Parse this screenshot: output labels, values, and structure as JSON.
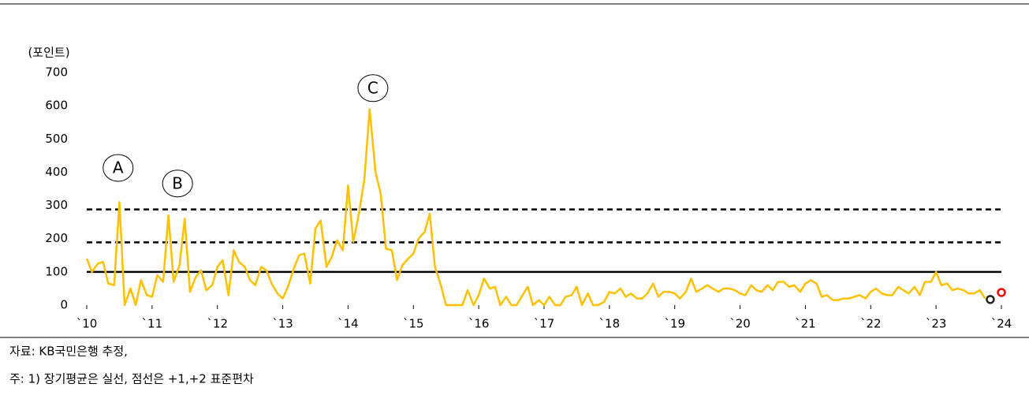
{
  "chart_data": {
    "type": "line",
    "unit_label": "(포인트)",
    "color": "#ffc000",
    "xlim": [
      2010,
      2024
    ],
    "xticks": [
      {
        "value": 2010,
        "label": "`10"
      },
      {
        "value": 2011,
        "label": "`11"
      },
      {
        "value": 2012,
        "label": "`12"
      },
      {
        "value": 2013,
        "label": "`13"
      },
      {
        "value": 2014,
        "label": "`14"
      },
      {
        "value": 2015,
        "label": "`15"
      },
      {
        "value": 2016,
        "label": "`16"
      },
      {
        "value": 2017,
        "label": "`17"
      },
      {
        "value": 2018,
        "label": "`18"
      },
      {
        "value": 2019,
        "label": "`19"
      },
      {
        "value": 2020,
        "label": "`20"
      },
      {
        "value": 2021,
        "label": "`21"
      },
      {
        "value": 2022,
        "label": "`22"
      },
      {
        "value": 2023,
        "label": "`23"
      },
      {
        "value": 2024,
        "label": "`24"
      }
    ],
    "ylim": [
      0,
      700
    ],
    "yticks": [
      0,
      100,
      200,
      300,
      400,
      500,
      600,
      700
    ],
    "x": [
      2010,
      2010.08,
      2010.17,
      2010.25,
      2010.33,
      2010.42,
      2010.5,
      2010.58,
      2010.67,
      2010.75,
      2010.83,
      2010.92,
      2011,
      2011.08,
      2011.17,
      2011.25,
      2011.33,
      2011.42,
      2011.5,
      2011.58,
      2011.67,
      2011.75,
      2011.83,
      2011.92,
      2012,
      2012.08,
      2012.17,
      2012.25,
      2012.33,
      2012.42,
      2012.5,
      2012.58,
      2012.67,
      2012.75,
      2012.83,
      2012.92,
      2013,
      2013.08,
      2013.17,
      2013.25,
      2013.33,
      2013.42,
      2013.5,
      2013.58,
      2013.67,
      2013.75,
      2013.83,
      2013.92,
      2014,
      2014.08,
      2014.17,
      2014.25,
      2014.33,
      2014.42,
      2014.5,
      2014.58,
      2014.67,
      2014.75,
      2014.83,
      2014.92,
      2015,
      2015.08,
      2015.17,
      2015.25,
      2015.33,
      2015.42,
      2015.5,
      2015.58,
      2015.67,
      2015.75,
      2015.83,
      2015.92,
      2016,
      2016.08,
      2016.17,
      2016.25,
      2016.33,
      2016.42,
      2016.5,
      2016.58,
      2016.67,
      2016.75,
      2016.83,
      2016.92,
      2017,
      2017.08,
      2017.17,
      2017.25,
      2017.33,
      2017.42,
      2017.5,
      2017.58,
      2017.67,
      2017.75,
      2017.83,
      2017.92,
      2018,
      2018.08,
      2018.17,
      2018.25,
      2018.33,
      2018.42,
      2018.5,
      2018.58,
      2018.67,
      2018.75,
      2018.83,
      2018.92,
      2019,
      2019.08,
      2019.17,
      2019.25,
      2019.33,
      2019.42,
      2019.5,
      2019.58,
      2019.67,
      2019.75,
      2019.83,
      2019.92,
      2020,
      2020.08,
      2020.17,
      2020.25,
      2020.33,
      2020.42,
      2020.5,
      2020.58,
      2020.67,
      2020.75,
      2020.83,
      2020.92,
      2021,
      2021.08,
      2021.17,
      2021.25,
      2021.33,
      2021.42,
      2021.5,
      2021.58,
      2021.67,
      2021.75,
      2021.83,
      2021.92,
      2022,
      2022.08,
      2022.17,
      2022.25,
      2022.33,
      2022.42,
      2022.5,
      2022.58,
      2022.67,
      2022.75,
      2022.83,
      2022.92,
      2023,
      2023.08,
      2023.17,
      2023.25,
      2023.33,
      2023.42,
      2023.5,
      2023.58,
      2023.67,
      2023.75
    ],
    "values": [
      140,
      100,
      125,
      130,
      65,
      60,
      310,
      0,
      50,
      0,
      75,
      30,
      25,
      90,
      70,
      270,
      70,
      120,
      260,
      40,
      85,
      105,
      45,
      60,
      115,
      135,
      30,
      165,
      130,
      115,
      75,
      60,
      115,
      105,
      65,
      35,
      20,
      55,
      110,
      150,
      155,
      65,
      230,
      255,
      115,
      145,
      195,
      165,
      360,
      190,
      280,
      380,
      590,
      400,
      335,
      170,
      165,
      75,
      120,
      140,
      155,
      200,
      220,
      275,
      115,
      60,
      0,
      0,
      0,
      0,
      45,
      0,
      30,
      80,
      50,
      55,
      0,
      25,
      0,
      0,
      30,
      55,
      0,
      15,
      0,
      25,
      0,
      0,
      25,
      30,
      55,
      0,
      35,
      0,
      0,
      10,
      40,
      35,
      50,
      25,
      35,
      20,
      20,
      35,
      65,
      25,
      40,
      40,
      35,
      20,
      40,
      80,
      40,
      50,
      60,
      50,
      40,
      50,
      50,
      45,
      35,
      30,
      60,
      45,
      40,
      60,
      45,
      70,
      70,
      55,
      60,
      40,
      65,
      75,
      65,
      25,
      30,
      15,
      15,
      20,
      20,
      25,
      30,
      20,
      40,
      50,
      35,
      30,
      30,
      55,
      45,
      35,
      55,
      30,
      70,
      70,
      100,
      60,
      65,
      45,
      50,
      45,
      35,
      35,
      45,
      20
    ],
    "hlines": [
      {
        "value": 100,
        "style": "solid"
      },
      {
        "value": 189,
        "style": "dashed"
      },
      {
        "value": 288,
        "style": "dashed"
      }
    ],
    "markers": [
      {
        "x": 2023.83,
        "y": 17,
        "color": "#222222"
      },
      {
        "x": 2024,
        "y": 38,
        "color": "#ff0000"
      }
    ],
    "annotations": [
      {
        "text": "A",
        "x": 2010.48,
        "y": 413
      },
      {
        "text": "B",
        "x": 2011.39,
        "y": 366
      },
      {
        "text": "C",
        "x": 2014.38,
        "y": 653
      }
    ]
  },
  "footer": {
    "source": "자료: KB국민은행 추정,",
    "note": "주: 1) 장기평균은 실선, 점선은 +1,+2 표준편차"
  }
}
